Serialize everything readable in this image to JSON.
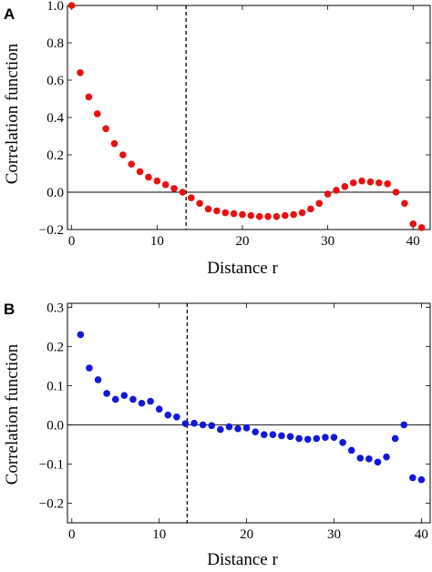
{
  "chart_data": [
    {
      "panel": "A",
      "type": "scatter",
      "xlabel": "Distance  r",
      "ylabel": "Correlation function",
      "xlim": [
        -0.5,
        42
      ],
      "ylim": [
        -0.2,
        1.0
      ],
      "xticks": [
        0,
        10,
        20,
        30,
        40
      ],
      "yticks": [
        -0.2,
        0.0,
        0.2,
        0.4,
        0.6,
        0.8,
        1.0
      ],
      "ytick_labels": [
        "−0.2",
        "0.0",
        "0.2",
        "0.4",
        "0.6",
        "0.8",
        "1.0"
      ],
      "reference_line_x": 13.4,
      "zero_line": true,
      "color": "#e8110f",
      "x": [
        0,
        1,
        2,
        3,
        4,
        5,
        6,
        7,
        8,
        9,
        10,
        11,
        12,
        13,
        14,
        15,
        16,
        17,
        18,
        19,
        20,
        21,
        22,
        23,
        24,
        25,
        26,
        27,
        28,
        29,
        30,
        31,
        32,
        33,
        34,
        35,
        36,
        37,
        38,
        39,
        40,
        41
      ],
      "y": [
        1.0,
        0.64,
        0.51,
        0.42,
        0.34,
        0.26,
        0.2,
        0.15,
        0.11,
        0.08,
        0.06,
        0.04,
        0.02,
        0.0,
        -0.03,
        -0.06,
        -0.09,
        -0.1,
        -0.11,
        -0.115,
        -0.12,
        -0.125,
        -0.13,
        -0.13,
        -0.13,
        -0.125,
        -0.12,
        -0.11,
        -0.09,
        -0.06,
        -0.01,
        0.01,
        0.03,
        0.05,
        0.06,
        0.055,
        0.05,
        0.045,
        0.0,
        -0.06,
        -0.17,
        -0.19
      ]
    },
    {
      "panel": "B",
      "type": "scatter",
      "xlabel": "Distance  r",
      "ylabel": "Correlation function",
      "xlim": [
        -0.5,
        41
      ],
      "ylim": [
        -0.25,
        0.31
      ],
      "xticks": [
        0,
        10,
        20,
        30,
        40
      ],
      "yticks": [
        -0.2,
        -0.1,
        0.0,
        0.1,
        0.2,
        0.3
      ],
      "ytick_labels": [
        "−0.2",
        "−0.1",
        "0.0",
        "0.1",
        "0.2",
        "0.3"
      ],
      "reference_line_x": 13.2,
      "zero_line": true,
      "color": "#1117dd",
      "x": [
        1,
        2,
        3,
        4,
        5,
        6,
        7,
        8,
        9,
        10,
        11,
        12,
        13,
        14,
        15,
        16,
        17,
        18,
        19,
        20,
        21,
        22,
        23,
        24,
        25,
        26,
        27,
        28,
        29,
        30,
        31,
        32,
        33,
        34,
        35,
        36,
        37,
        38,
        39,
        40
      ],
      "y": [
        0.23,
        0.145,
        0.115,
        0.08,
        0.065,
        0.075,
        0.065,
        0.055,
        0.06,
        0.04,
        0.025,
        0.02,
        0.003,
        0.004,
        0.0,
        -0.002,
        -0.012,
        -0.005,
        -0.01,
        -0.008,
        -0.018,
        -0.025,
        -0.025,
        -0.028,
        -0.03,
        -0.035,
        -0.037,
        -0.035,
        -0.032,
        -0.032,
        -0.045,
        -0.065,
        -0.085,
        -0.087,
        -0.095,
        -0.082,
        -0.035,
        0.0,
        -0.135,
        -0.14
      ]
    }
  ]
}
